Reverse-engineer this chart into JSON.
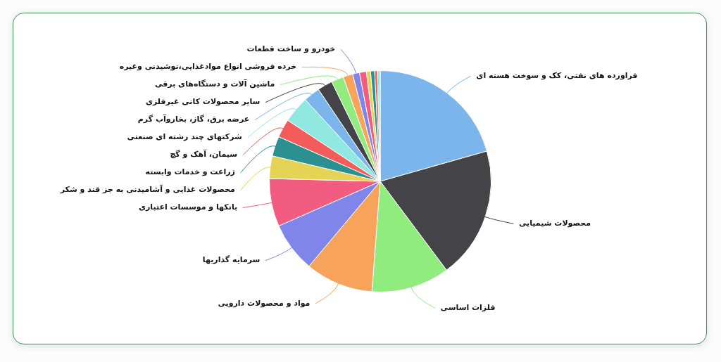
{
  "chart_data": {
    "type": "pie",
    "categories": [
      "فراورده های نفتی، کک و سوخت هسته ای",
      "محصولات شیمیایی",
      "فلزات اساسی",
      "مواد و محصولات دارویی",
      "سرمایه گذاریها",
      "بانکها و موسسات اعتباری",
      "محصولات غذایی و آشامیدنی به جز قند و شکر",
      "زراعت و خدمات وابسته",
      "سیمان، آهک و گچ",
      "شرکتهای چند رشته ای صنعتی",
      "عرضه برق، گاز، بخاروآب گرم",
      "سایر محصولات کانی غیرفلزی",
      "ماشین آلات و دستگاه‌های برقی",
      "خرده فروشی انواع موادغذایی،نوشیدنی وغیره",
      "خودرو و ساخت قطعات",
      null,
      null,
      null,
      null,
      null
    ],
    "values": [
      20.6,
      19.2,
      11.4,
      9.9,
      7.3,
      7.0,
      3.3,
      2.9,
      2.7,
      3.9,
      2.4,
      2.2,
      1.8,
      1.4,
      1.0,
      1.0,
      0.6,
      0.6,
      0.4,
      0.4
    ],
    "colors": [
      "#7cb5ec",
      "#434348",
      "#90ed7d",
      "#f7a35c",
      "#8085e9",
      "#f15c80",
      "#e4d354",
      "#2b908f",
      "#f45b5b",
      "#91e8e1",
      "#7cb5ec",
      "#434348",
      "#90ed7d",
      "#f7a35c",
      "#8085e9",
      "#f15c80",
      "#e4d354",
      "#2b908f",
      "#f45b5b",
      "#91e8e1"
    ],
    "legend": false
  }
}
